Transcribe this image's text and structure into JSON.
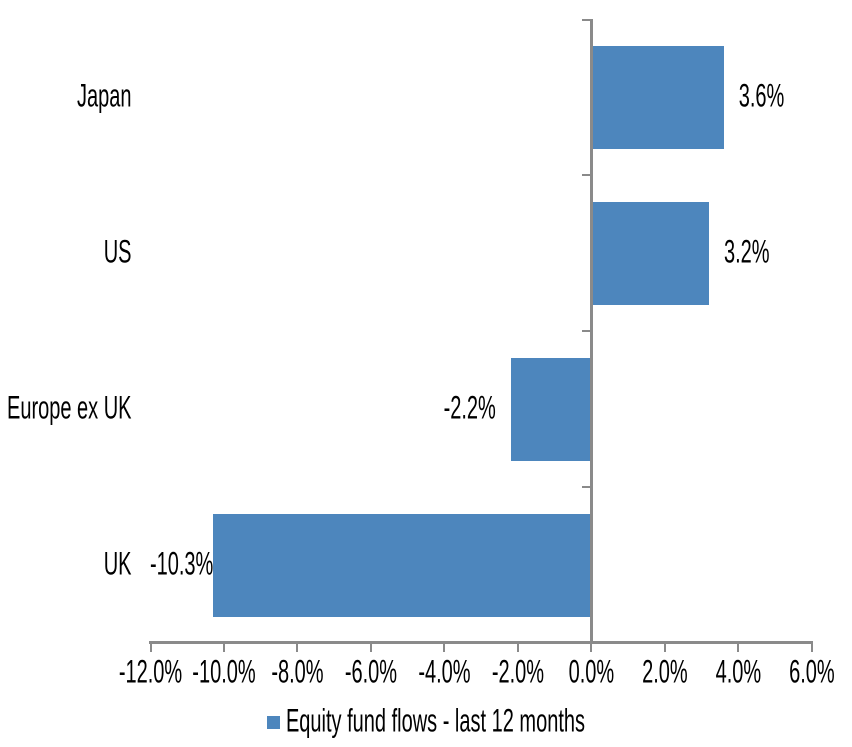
{
  "chart_data": {
    "type": "bar",
    "orientation": "horizontal",
    "title": "",
    "categories": [
      "Japan",
      "US",
      "Europe ex UK",
      "UK"
    ],
    "series": [
      {
        "name": "Equity fund flows - last 12 months",
        "values": [
          3.6,
          3.2,
          -2.2,
          -10.3
        ],
        "data_labels": [
          "3.6%",
          "3.2%",
          "-2.2%",
          "-10.3%"
        ],
        "color": "#4D86BD"
      }
    ],
    "x_axis": {
      "min": -12,
      "max": 6,
      "tick_step": 2,
      "tick_labels": [
        "-12.0%",
        "-10.0%",
        "-8.0%",
        "-6.0%",
        "-4.0%",
        "-2.0%",
        "0.0%",
        "2.0%",
        "4.0%",
        "6.0%"
      ]
    },
    "y_axis": {
      "zero_line": true
    },
    "grid": false,
    "legend_position": "bottom",
    "axis_color": "#8A8A8A",
    "text_color": "#000000",
    "background": "#FFFFFF"
  },
  "legend": {
    "label": "Equity fund flows - last 12 months"
  }
}
